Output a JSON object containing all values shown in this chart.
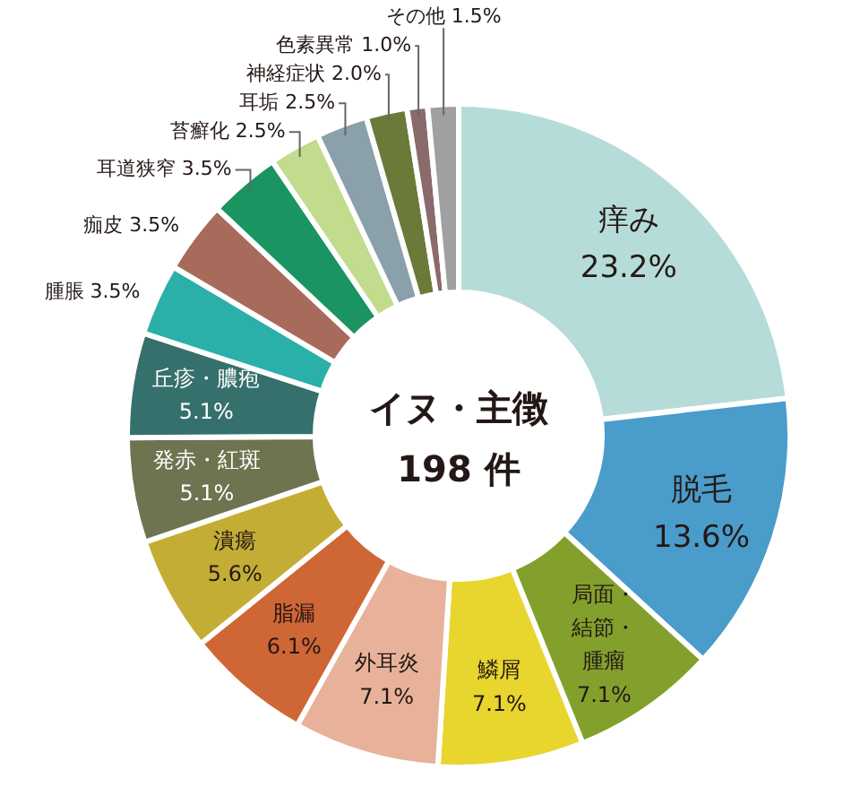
{
  "chart_data": {
    "type": "donut",
    "title": "イヌ・主徴",
    "subtitle": "198 件",
    "categories": [
      "痒み",
      "脱毛",
      "局面・結節・腫瘤",
      "鱗屑",
      "外耳炎",
      "脂漏",
      "潰瘍",
      "発赤・紅斑",
      "丘疹・膿疱",
      "腫脹",
      "痂皮",
      "耳道狭窄",
      "苔癬化",
      "耳垢",
      "神経症状",
      "色素異常",
      "その他"
    ],
    "values": [
      23.2,
      13.6,
      7.1,
      7.1,
      7.1,
      6.1,
      5.6,
      5.1,
      5.1,
      3.5,
      3.5,
      3.5,
      2.5,
      2.5,
      2.0,
      1.0,
      1.5
    ],
    "value_labels": [
      "23.2%",
      "13.6%",
      "7.1%",
      "7.1%",
      "7.1%",
      "6.1%",
      "5.6%",
      "5.1%",
      "5.1%",
      "3.5%",
      "3.5%",
      "3.5%",
      "2.5%",
      "2.5%",
      "2.0%",
      "1.0%",
      "1.5%"
    ],
    "colors": [
      "#b5dcd8",
      "#4a9ccb",
      "#84a02c",
      "#e8d52e",
      "#e8b29a",
      "#cf6635",
      "#c4ad35",
      "#6f7350",
      "#36706d",
      "#2ab0a8",
      "#a86a5a",
      "#1a9460",
      "#c0dc8c",
      "#8aa0aa",
      "#6b7a38",
      "#8a6a6a",
      "#a0a0a0"
    ]
  }
}
